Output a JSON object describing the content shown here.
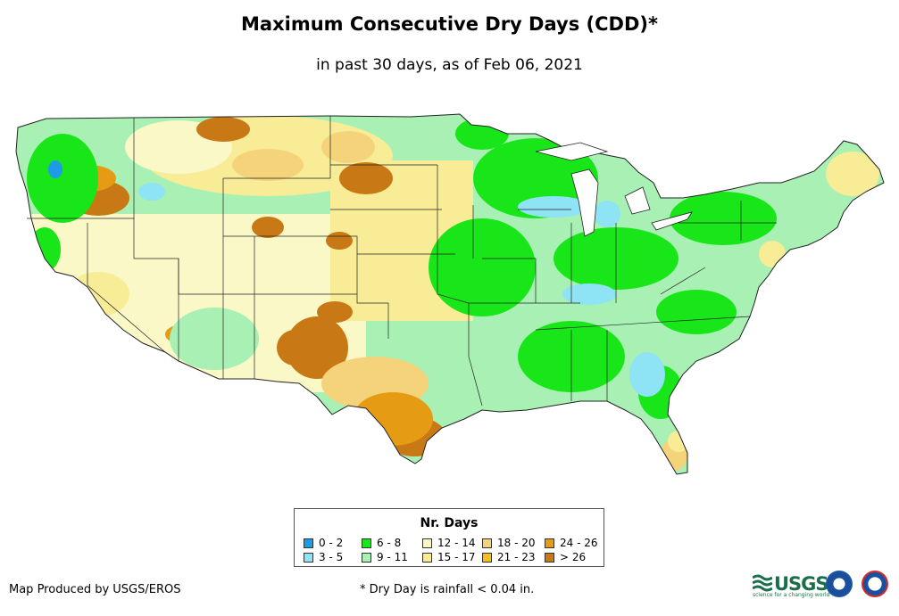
{
  "header": {
    "title": "Maximum Consecutive Dry Days (CDD)*",
    "subtitle": "in past 30 days, as of Feb 06, 2021"
  },
  "legend": {
    "title": "Nr. Days",
    "items": [
      {
        "label": "0 - 2",
        "color": "#1e9be6"
      },
      {
        "label": "3 - 5",
        "color": "#8ee3f5"
      },
      {
        "label": "6 - 8",
        "color": "#19e619"
      },
      {
        "label": "9 - 11",
        "color": "#a8f0b4"
      },
      {
        "label": "12 - 14",
        "color": "#fbf8c8"
      },
      {
        "label": "15 - 17",
        "color": "#f8ec96"
      },
      {
        "label": "18 - 20",
        "color": "#f5d37a"
      },
      {
        "label": "21 - 23",
        "color": "#f4be1e"
      },
      {
        "label": "24 - 26",
        "color": "#e69b14"
      },
      {
        "label": "> 26",
        "color": "#c87814"
      }
    ]
  },
  "footer": {
    "credit": "Map Produced by USGS/EROS",
    "footnote": "* Dry Day is rainfall < 0.04 in.",
    "usgs_logo_text": "USGS",
    "usgs_tagline": "science for a changing world",
    "logos": [
      "noaa-logo",
      "weather-service-logo"
    ]
  }
}
